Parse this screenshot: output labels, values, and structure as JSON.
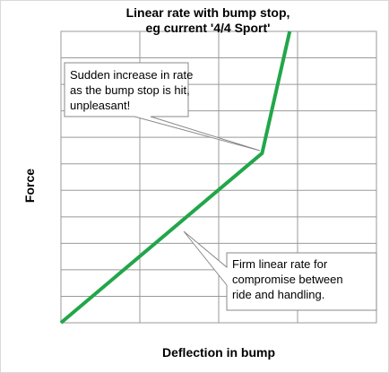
{
  "chart_data": {
    "type": "line",
    "title": [
      "Linear rate with bump stop,",
      "eg current '4/4 Sport'"
    ],
    "x_label": "Deflection in bump",
    "y_label": "Force",
    "x": [
      0,
      2.55,
      2.9
    ],
    "series": [
      {
        "color": "#22a64a",
        "values": [
          0,
          6.4,
          11
        ]
      }
    ],
    "xlim": [
      0,
      4
    ],
    "ylim": [
      0,
      11
    ],
    "xticks": [
      0,
      1,
      2,
      3,
      4
    ],
    "yticks": [
      0,
      1,
      2,
      3,
      4,
      5,
      6,
      7,
      8,
      9,
      10,
      11
    ],
    "grid": true,
    "annotations": [
      {
        "lines": [
          "Sudden increase in rate",
          "as the bump stop is hit,",
          "unpleasant!"
        ]
      },
      {
        "lines": [
          "Firm linear rate for",
          "compromise between",
          "ride and handling."
        ]
      }
    ]
  }
}
